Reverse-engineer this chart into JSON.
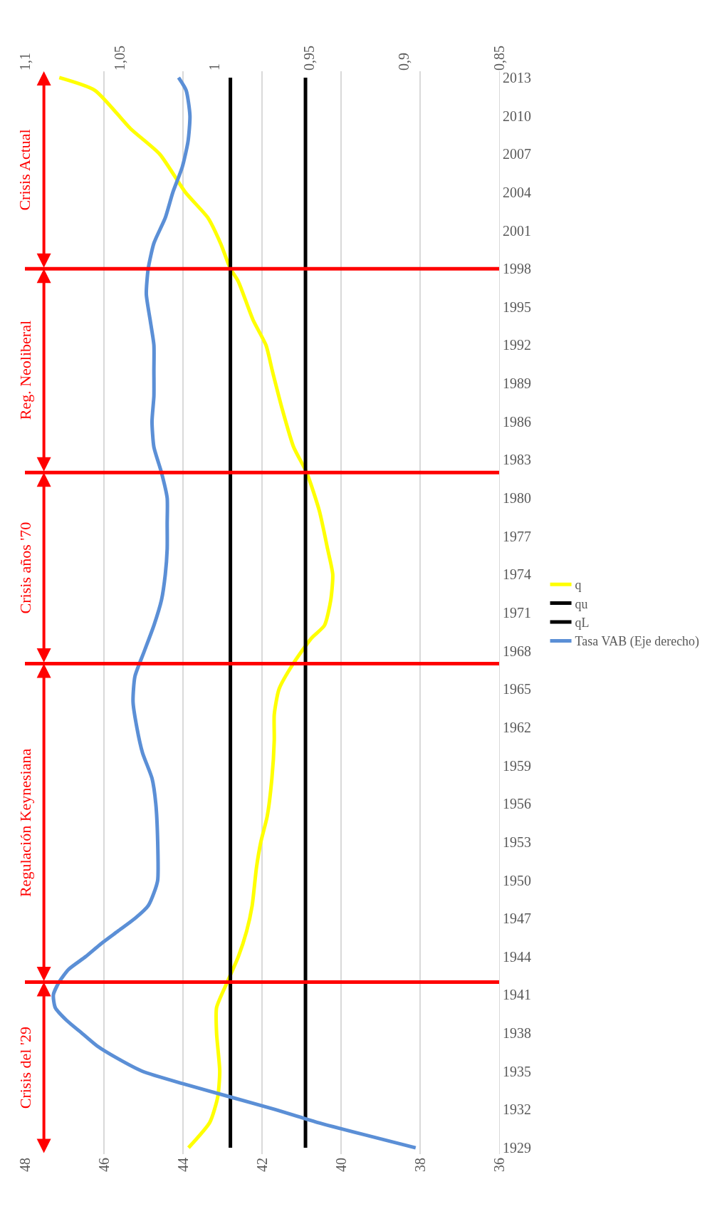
{
  "chart_data": {
    "type": "line",
    "series": [
      {
        "name": "q",
        "color": "#ffff00",
        "x": [
          43.86,
          43.32,
          43.12,
          43.07,
          43.15,
          43.15,
          42.88,
          42.6,
          42.39,
          42.25,
          42.14,
          42.03,
          41.87,
          41.75,
          41.69,
          41.69,
          41.57,
          41.21,
          40.75,
          40.42,
          40.26,
          40.21,
          40.34,
          40.55,
          40.87,
          41.2,
          41.49,
          41.74,
          41.9,
          42.23,
          42.6,
          42.8,
          43.05,
          43.37,
          43.94,
          44.59,
          45.33,
          46.23,
          47.13
        ],
        "values": [
          1929,
          1931,
          1933,
          1935,
          1938,
          1940,
          1942,
          1944,
          1946,
          1948,
          1951,
          1953,
          1955,
          1958,
          1961,
          1963,
          1965,
          1967,
          1969,
          1970,
          1972,
          1974,
          1976,
          1979,
          1982,
          1984,
          1987,
          1990,
          1992,
          1994,
          1997,
          1998,
          2000,
          2002,
          2004,
          2007,
          2009,
          2012,
          2013
        ]
      },
      {
        "name": "qu",
        "color": "#000000",
        "x": [
          42.8,
          42.8
        ],
        "values": [
          1929,
          2013
        ]
      },
      {
        "name": "qL",
        "color": "#000000",
        "x": [
          40.9,
          40.9
        ],
        "values": [
          1929,
          2013
        ]
      },
      {
        "name": "Tasa VAB (Eje derecho)",
        "color": "#5b8fd6",
        "axis": "x2",
        "x": [
          0.894,
          0.946,
          0.968,
          0.992,
          1.016,
          1.038,
          1.051,
          1.062,
          1.07,
          1.078,
          1.084,
          1.085,
          1.082,
          1.077,
          1.068,
          1.06,
          1.051,
          1.042,
          1.035,
          1.032,
          1.03,
          1.03,
          1.031,
          1.033,
          1.038,
          1.041,
          1.043,
          1.042,
          1.037,
          1.032,
          1.028,
          1.026,
          1.025,
          1.025,
          1.025,
          1.028,
          1.032,
          1.033,
          1.032,
          1.032,
          1.032,
          1.034,
          1.036,
          1.035,
          1.032,
          1.026,
          1.022,
          1.017,
          1.014,
          1.013,
          1.015,
          1.019
        ],
        "values": [
          1929,
          1931,
          1932,
          1933,
          1934,
          1935,
          1936,
          1937,
          1938,
          1939,
          1940,
          1941,
          1942,
          1943,
          1944,
          1945,
          1946,
          1947,
          1948,
          1949,
          1950,
          1953,
          1956,
          1958,
          1960,
          1962,
          1964,
          1966,
          1968,
          1970,
          1972,
          1974,
          1976,
          1978,
          1980,
          1982,
          1984,
          1986,
          1988,
          1990,
          1992,
          1994,
          1996,
          1998,
          2000,
          2002,
          2004,
          2006,
          2008,
          2010,
          2012,
          2013
        ]
      }
    ],
    "ylim": [
      1928.5,
      2013.5
    ],
    "yticks": [
      1929,
      1932,
      1935,
      1938,
      1941,
      1944,
      1947,
      1950,
      1953,
      1956,
      1959,
      1962,
      1965,
      1968,
      1971,
      1974,
      1977,
      1980,
      1983,
      1986,
      1989,
      1992,
      1995,
      1998,
      2001,
      2004,
      2007,
      2010,
      2013
    ],
    "xlim": [
      48,
      36
    ],
    "xticks": [
      48,
      46,
      44,
      42,
      40,
      38,
      36
    ],
    "x2lim": [
      1.1,
      0.85
    ],
    "x2ticks": [
      {
        "value": 1.1,
        "label": "1,1"
      },
      {
        "value": 1.05,
        "label": "1,05"
      },
      {
        "value": 1,
        "label": "1"
      },
      {
        "value": 0.95,
        "label": "0,95"
      },
      {
        "value": 0.9,
        "label": "0,9"
      },
      {
        "value": 0.85,
        "label": "0,85"
      }
    ],
    "ref_lines": [
      {
        "axis": "y",
        "value": 1942,
        "color": "#ff0000"
      },
      {
        "axis": "y",
        "value": 1967,
        "color": "#ff0000"
      },
      {
        "axis": "y",
        "value": 1982,
        "color": "#ff0000"
      },
      {
        "axis": "y",
        "value": 1998,
        "color": "#ff0000"
      }
    ],
    "annotations": [
      "Crisis del '29",
      "Regulación Keynesiana",
      "Crisis años '70",
      "Reg. Neoliberal",
      "Crisis Actual"
    ],
    "grid": "x",
    "legend": "right",
    "marker": "none",
    "line_style": "solid"
  }
}
